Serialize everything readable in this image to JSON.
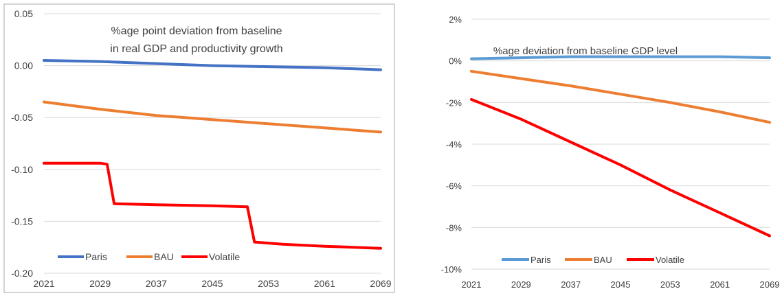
{
  "chart_data": [
    {
      "type": "line",
      "title": "%age point deviation from baseline",
      "subtitle": "in real GDP and productivity growth",
      "xlabel": "",
      "ylabel": "",
      "x_ticks": [
        "2021",
        "2029",
        "2037",
        "2045",
        "2053",
        "2061",
        "2069"
      ],
      "xlim": [
        2021,
        2069
      ],
      "ylim": [
        -0.2,
        0.05
      ],
      "y_ticks": [
        0.05,
        0.0,
        -0.05,
        -0.1,
        -0.15,
        -0.2
      ],
      "y_tick_labels": [
        "0.05",
        "0.00",
        "-0.05",
        "-0.10",
        "-0.15",
        "-0.20"
      ],
      "grid": true,
      "legend_position": "bottom",
      "series": [
        {
          "name": "Paris",
          "color": "#4472C4",
          "points": [
            [
              2021,
              0.005
            ],
            [
              2029,
              0.004
            ],
            [
              2037,
              0.002
            ],
            [
              2045,
              0.0
            ],
            [
              2053,
              -0.001
            ],
            [
              2061,
              -0.002
            ],
            [
              2069,
              -0.004
            ]
          ]
        },
        {
          "name": "BAU",
          "color": "#ED7D31",
          "points": [
            [
              2021,
              -0.035
            ],
            [
              2029,
              -0.042
            ],
            [
              2037,
              -0.048
            ],
            [
              2045,
              -0.052
            ],
            [
              2053,
              -0.056
            ],
            [
              2061,
              -0.06
            ],
            [
              2069,
              -0.064
            ]
          ]
        },
        {
          "name": "Volatile",
          "color": "#FF0000",
          "points": [
            [
              2021,
              -0.094
            ],
            [
              2029,
              -0.094
            ],
            [
              2030,
              -0.095
            ],
            [
              2031,
              -0.133
            ],
            [
              2037,
              -0.134
            ],
            [
              2045,
              -0.135
            ],
            [
              2050,
              -0.136
            ],
            [
              2051,
              -0.17
            ],
            [
              2055,
              -0.172
            ],
            [
              2061,
              -0.174
            ],
            [
              2069,
              -0.176
            ]
          ]
        }
      ]
    },
    {
      "type": "line",
      "title": "%age deviation from baseline GDP level",
      "xlabel": "",
      "ylabel": "",
      "x_ticks": [
        "2021",
        "2029",
        "2037",
        "2045",
        "2053",
        "2061",
        "2069"
      ],
      "xlim": [
        2021,
        2069
      ],
      "ylim": [
        -10,
        2
      ],
      "y_ticks": [
        2,
        0,
        -2,
        -4,
        -6,
        -8,
        -10
      ],
      "y_tick_labels": [
        "2%",
        "0%",
        "-2%",
        "-4%",
        "-6%",
        "-8%",
        "-10%"
      ],
      "grid": true,
      "legend_position": "bottom",
      "series": [
        {
          "name": "Paris",
          "color": "#5B9BD5",
          "points": [
            [
              2021,
              0.1
            ],
            [
              2037,
              0.2
            ],
            [
              2061,
              0.2
            ],
            [
              2069,
              0.15
            ]
          ]
        },
        {
          "name": "BAU",
          "color": "#ED7D31",
          "points": [
            [
              2021,
              -0.5
            ],
            [
              2029,
              -0.85
            ],
            [
              2037,
              -1.2
            ],
            [
              2045,
              -1.6
            ],
            [
              2053,
              -2.0
            ],
            [
              2061,
              -2.45
            ],
            [
              2069,
              -2.95
            ]
          ]
        },
        {
          "name": "Volatile",
          "color": "#FF0000",
          "points": [
            [
              2021,
              -1.85
            ],
            [
              2029,
              -2.8
            ],
            [
              2037,
              -3.9
            ],
            [
              2045,
              -5.0
            ],
            [
              2053,
              -6.2
            ],
            [
              2061,
              -7.3
            ],
            [
              2069,
              -8.4
            ]
          ]
        }
      ]
    }
  ]
}
